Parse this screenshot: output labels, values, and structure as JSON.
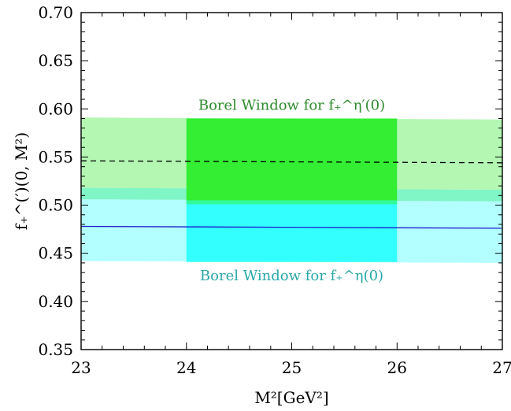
{
  "chart_data": {
    "type": "line",
    "xlabel": "M²[GeV²]",
    "ylabel": "f₊^(′)(0, M²)",
    "xlim": [
      23,
      27
    ],
    "ylim": [
      0.35,
      0.7
    ],
    "x_ticks": [
      "23",
      "24",
      "25",
      "26",
      "27"
    ],
    "y_ticks": [
      "0.35",
      "0.40",
      "0.45",
      "0.50",
      "0.55",
      "0.60",
      "0.65",
      "0.70"
    ],
    "grid": false,
    "series": [
      {
        "x": [
          23,
          27
        ],
        "y": [
          0.546,
          0.544
        ],
        "style": "dashed",
        "color": "#000000",
        "band": {
          "upper": [
            0.591,
            0.589
          ],
          "lower": [
            0.518,
            0.516
          ]
        }
      },
      {
        "x": [
          23,
          27
        ],
        "y": [
          0.478,
          0.476
        ],
        "style": "solid",
        "color": "#1a1acc",
        "band": {
          "upper": [
            0.506,
            0.504
          ],
          "lower": [
            0.442,
            0.44
          ]
        }
      }
    ],
    "windows": [
      {
        "label": "Borel Window for f₊^η′(0)",
        "x_range": [
          24,
          26
        ],
        "y_range": [
          0.501,
          0.59
        ],
        "color": "#33ee33"
      },
      {
        "label": "Borel Window for f₊^η(0)",
        "x_range": [
          24,
          26
        ],
        "y_range": [
          0.441,
          0.505
        ],
        "color": "#33ffff"
      }
    ],
    "annotations": [
      {
        "text": "Borel Window for f₊^η′(0)",
        "x": 25,
        "y": 0.604,
        "color": "#2e8b2e"
      },
      {
        "text": "Borel Window for f₊^η(0)",
        "x": 25,
        "y": 0.427,
        "color": "#2aa8a8"
      }
    ]
  },
  "colors": {
    "eta_prime_band": "#b3f7b3",
    "eta_band": "#b3ffff",
    "overlap_band": "#80f5c6",
    "eta_prime_window": "#33ee33",
    "eta_window": "#33ffff",
    "overlap_window": "#33fa99"
  }
}
